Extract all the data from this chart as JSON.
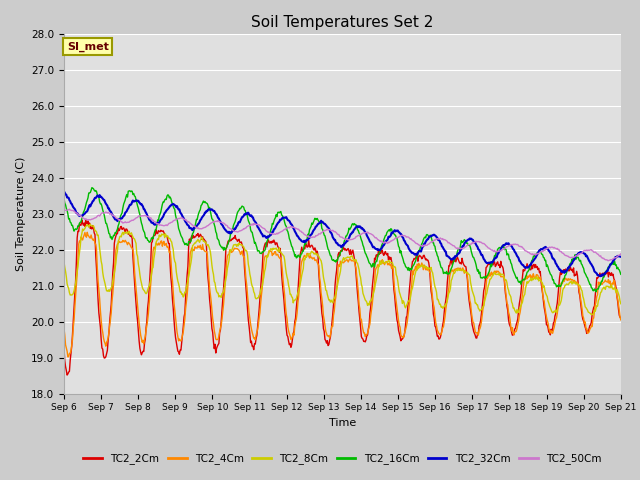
{
  "title": "Soil Temperatures Set 2",
  "xlabel": "Time",
  "ylabel": "Soil Temperature (C)",
  "ylim": [
    18.0,
    28.0
  ],
  "yticks": [
    18.0,
    19.0,
    20.0,
    21.0,
    22.0,
    23.0,
    24.0,
    25.0,
    26.0,
    27.0,
    28.0
  ],
  "fig_bg_color": "#cccccc",
  "plot_bg_color": "#e0e0e0",
  "series": [
    {
      "label": "TC2_2Cm",
      "color": "#dd0000",
      "lw": 1.0
    },
    {
      "label": "TC2_4Cm",
      "color": "#ff8800",
      "lw": 1.0
    },
    {
      "label": "TC2_8Cm",
      "color": "#cccc00",
      "lw": 1.0
    },
    {
      "label": "TC2_16Cm",
      "color": "#00bb00",
      "lw": 1.0
    },
    {
      "label": "TC2_32Cm",
      "color": "#0000cc",
      "lw": 1.5
    },
    {
      "label": "TC2_50Cm",
      "color": "#cc77cc",
      "lw": 1.0
    }
  ],
  "annotation_text": "SI_met",
  "n_days": 15,
  "pts_per_day": 48
}
